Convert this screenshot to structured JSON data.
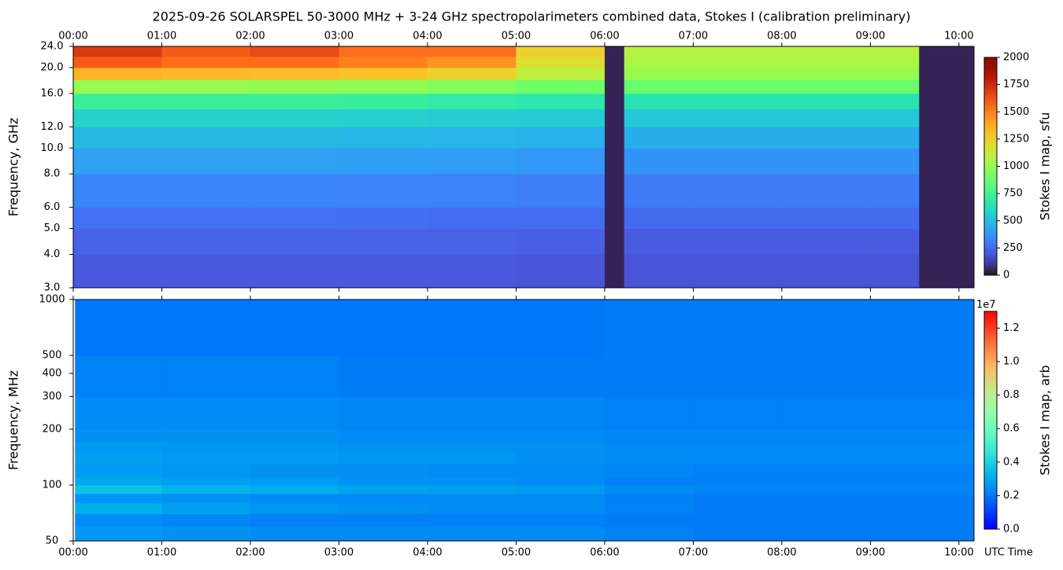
{
  "title": "2025-09-26  SOLARSPEL  50-3000 MHz  +  3-24 GHz  spectropolarimeters combined data,  Stokes I  (calibration preliminary)",
  "chart_data": [
    {
      "type": "heatmap",
      "ylabel": "Frequency, GHz",
      "yscale": "log",
      "x_label_position": "top",
      "xlim": [
        0,
        10.17
      ],
      "xticks": [
        {
          "value": 0,
          "label": "00:00"
        },
        {
          "value": 1,
          "label": "01:00"
        },
        {
          "value": 2,
          "label": "02:00"
        },
        {
          "value": 3,
          "label": "03:00"
        },
        {
          "value": 4,
          "label": "04:00"
        },
        {
          "value": 5,
          "label": "05:00"
        },
        {
          "value": 6,
          "label": "06:00"
        },
        {
          "value": 7,
          "label": "07:00"
        },
        {
          "value": 8,
          "label": "08:00"
        },
        {
          "value": 9,
          "label": "09:00"
        },
        {
          "value": 10,
          "label": "10:00"
        }
      ],
      "ylim": [
        3,
        24
      ],
      "yticks": [
        {
          "value": 24,
          "label": "24.0"
        },
        {
          "value": 20,
          "label": "20.0"
        },
        {
          "value": 16,
          "label": "16.0"
        },
        {
          "value": 12,
          "label": "12.0"
        },
        {
          "value": 10,
          "label": "10.0"
        },
        {
          "value": 8,
          "label": "8.0"
        },
        {
          "value": 6,
          "label": "6.0"
        },
        {
          "value": 5,
          "label": "5.0"
        },
        {
          "value": 4,
          "label": "4.0"
        },
        {
          "value": 3,
          "label": "3.0"
        }
      ],
      "x_edges": [
        0,
        1,
        2,
        3,
        4,
        5,
        6,
        6.22,
        7,
        8,
        9,
        9.55,
        10.17
      ],
      "y_edges": [
        3,
        4,
        5,
        6,
        8,
        10,
        12,
        14,
        16,
        18,
        20,
        22,
        24
      ],
      "z": [
        [
          200,
          200,
          200,
          200,
          200,
          190,
          40,
          190,
          190,
          190,
          190,
          40
        ],
        [
          230,
          230,
          230,
          230,
          225,
          220,
          40,
          210,
          210,
          210,
          210,
          40
        ],
        [
          270,
          270,
          270,
          265,
          260,
          255,
          40,
          250,
          250,
          250,
          250,
          40
        ],
        [
          330,
          330,
          330,
          325,
          320,
          310,
          40,
          300,
          300,
          300,
          300,
          40
        ],
        [
          410,
          410,
          410,
          400,
          395,
          380,
          40,
          370,
          370,
          370,
          370,
          40
        ],
        [
          490,
          490,
          490,
          480,
          470,
          460,
          40,
          450,
          450,
          450,
          450,
          40
        ],
        [
          580,
          580,
          580,
          570,
          560,
          550,
          40,
          540,
          540,
          540,
          540,
          40
        ],
        [
          720,
          720,
          720,
          710,
          690,
          670,
          40,
          650,
          650,
          650,
          650,
          40
        ],
        [
          1000,
          1000,
          990,
          980,
          950,
          900,
          40,
          880,
          880,
          880,
          880,
          40
        ],
        [
          1350,
          1330,
          1320,
          1300,
          1250,
          1100,
          40,
          1000,
          1000,
          1000,
          1000,
          40
        ],
        [
          1600,
          1550,
          1550,
          1500,
          1450,
          1200,
          40,
          1050,
          1050,
          1050,
          1050,
          40
        ],
        [
          1700,
          1600,
          1650,
          1550,
          1550,
          1250,
          40,
          1080,
          1080,
          1080,
          1080,
          40
        ]
      ],
      "colormap": "turbo",
      "colorbar_label": "Stokes I map, sfu",
      "clim": [
        0,
        2000
      ],
      "cticks": [
        0,
        250,
        500,
        750,
        1000,
        1250,
        1500,
        1750,
        2000
      ]
    },
    {
      "type": "heatmap",
      "ylabel": "Frequency, MHz",
      "yscale": "log",
      "x_label_position": "bottom",
      "xlabel": "UTC Time",
      "xlim": [
        0,
        10.17
      ],
      "xticks": [
        {
          "value": 0,
          "label": "00:00"
        },
        {
          "value": 1,
          "label": "01:00"
        },
        {
          "value": 2,
          "label": "02:00"
        },
        {
          "value": 3,
          "label": "03:00"
        },
        {
          "value": 4,
          "label": "04:00"
        },
        {
          "value": 5,
          "label": "05:00"
        },
        {
          "value": 6,
          "label": "06:00"
        },
        {
          "value": 7,
          "label": "07:00"
        },
        {
          "value": 8,
          "label": "08:00"
        },
        {
          "value": 9,
          "label": "09:00"
        },
        {
          "value": 10,
          "label": "10:00"
        }
      ],
      "ylim": [
        50,
        1000
      ],
      "yticks": [
        1000,
        500,
        400,
        300,
        200,
        100,
        50
      ],
      "x_edges": [
        0.02,
        1,
        2,
        3,
        4,
        5,
        6,
        7,
        8,
        9,
        10.17
      ],
      "y_edges": [
        50,
        60,
        70,
        80,
        90,
        100,
        110,
        130,
        150,
        170,
        200,
        300,
        500,
        1000
      ],
      "z": [
        [
          0.26,
          0.25,
          0.24,
          0.24,
          0.24,
          0.24,
          0.22,
          0.21,
          0.21,
          0.21
        ],
        [
          0.24,
          0.23,
          0.22,
          0.22,
          0.22,
          0.22,
          0.21,
          0.21,
          0.21,
          0.21
        ],
        [
          0.32,
          0.28,
          0.26,
          0.25,
          0.24,
          0.24,
          0.22,
          0.21,
          0.21,
          0.21
        ],
        [
          0.26,
          0.25,
          0.24,
          0.24,
          0.24,
          0.24,
          0.22,
          0.21,
          0.21,
          0.21
        ],
        [
          0.36,
          0.33,
          0.31,
          0.29,
          0.28,
          0.27,
          0.24,
          0.23,
          0.23,
          0.23
        ],
        [
          0.3,
          0.28,
          0.27,
          0.25,
          0.25,
          0.24,
          0.22,
          0.22,
          0.22,
          0.22
        ],
        [
          0.27,
          0.26,
          0.25,
          0.25,
          0.24,
          0.24,
          0.23,
          0.22,
          0.22,
          0.22
        ],
        [
          0.28,
          0.27,
          0.27,
          0.26,
          0.26,
          0.25,
          0.24,
          0.24,
          0.24,
          0.24
        ],
        [
          0.27,
          0.26,
          0.26,
          0.25,
          0.25,
          0.25,
          0.24,
          0.24,
          0.24,
          0.24
        ],
        [
          0.25,
          0.25,
          0.25,
          0.24,
          0.24,
          0.24,
          0.23,
          0.23,
          0.23,
          0.23
        ],
        [
          0.24,
          0.24,
          0.24,
          0.23,
          0.23,
          0.23,
          0.22,
          0.22,
          0.22,
          0.22
        ],
        [
          0.22,
          0.22,
          0.22,
          0.21,
          0.21,
          0.21,
          0.21,
          0.21,
          0.21,
          0.21
        ],
        [
          0.2,
          0.2,
          0.2,
          0.2,
          0.2,
          0.2,
          0.21,
          0.21,
          0.21,
          0.21
        ]
      ],
      "colormap": "rainbow",
      "colorbar_label": "Stokes I map, arb",
      "colorbar_offset": "1e7",
      "clim": [
        0,
        1.3
      ],
      "cticks": [
        {
          "value": 0,
          "label": "0.0"
        },
        0.2,
        0.4,
        0.6,
        0.8,
        {
          "value": 1,
          "label": "1.0"
        },
        1.2
      ]
    }
  ]
}
